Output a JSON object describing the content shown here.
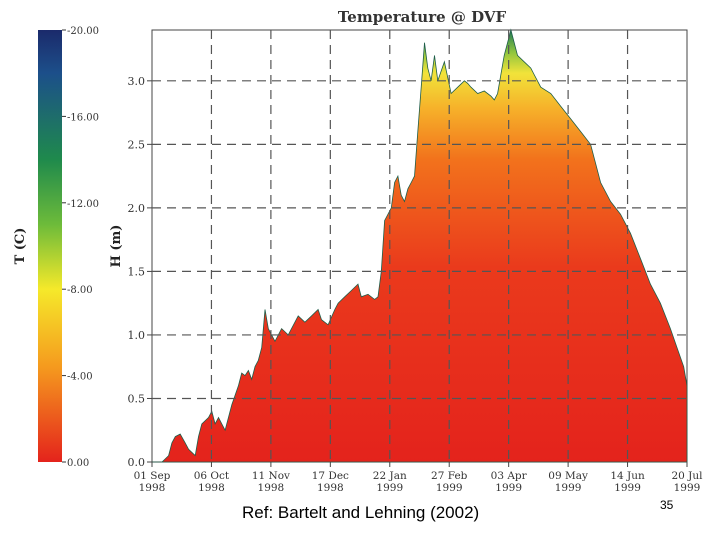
{
  "chart_data": {
    "type": "heatmap",
    "title": "Temperature @ DVF",
    "ylabel": "H (m)",
    "ylim": [
      0,
      3.4
    ],
    "yticks": [
      "0.0",
      "0.5",
      "1.0",
      "1.5",
      "2.0",
      "2.5",
      "3.0"
    ],
    "yticks_values": [
      0,
      0.5,
      1.0,
      1.5,
      2.0,
      2.5,
      3.0
    ],
    "xticks": [
      {
        "day": "01 Sep",
        "year": "1998"
      },
      {
        "day": "06 Oct",
        "year": "1998"
      },
      {
        "day": "11 Nov",
        "year": "1998"
      },
      {
        "day": "17 Dec",
        "year": "1998"
      },
      {
        "day": "22 Jan",
        "year": "1999"
      },
      {
        "day": "27 Feb",
        "year": "1999"
      },
      {
        "day": "03 Apr",
        "year": "1999"
      },
      {
        "day": "09 May",
        "year": "1999"
      },
      {
        "day": "14 Jun",
        "year": "1999"
      },
      {
        "day": "20 Jul",
        "year": "1999"
      }
    ],
    "xlim_days": [
      0,
      322
    ],
    "colorbar": {
      "label": "T (C)",
      "ticks": [
        "-20.00",
        "-16.00",
        "-12.00",
        "-8.00",
        "-4.00",
        "0.00"
      ],
      "tick_values": [
        -20,
        -16,
        -12,
        -8,
        -4,
        0
      ],
      "range": [
        -20,
        0
      ]
    },
    "snow_height_series": {
      "day": [
        0,
        6,
        10,
        12,
        14,
        17,
        20,
        22,
        26,
        28,
        30,
        34,
        36,
        38,
        40,
        42,
        44,
        48,
        52,
        54,
        56,
        58,
        60,
        62,
        64,
        66,
        68,
        70,
        72,
        74,
        78,
        82,
        86,
        88,
        92,
        96,
        100,
        102,
        106,
        110,
        112,
        116,
        120,
        124,
        126,
        130,
        134,
        136,
        138,
        140,
        144,
        146,
        148,
        150,
        152,
        154,
        156,
        158,
        160,
        162,
        164,
        166,
        168,
        170,
        172,
        176,
        180,
        184,
        188,
        190,
        192,
        196,
        200,
        204,
        206,
        208,
        212,
        216,
        220,
        224,
        228,
        230,
        234,
        240,
        246,
        252,
        258,
        264,
        270,
        276,
        282,
        288,
        294,
        300,
        306,
        312,
        316,
        320,
        322
      ],
      "height": [
        0,
        0,
        0.05,
        0.15,
        0.2,
        0.22,
        0.15,
        0.1,
        0.05,
        0.2,
        0.3,
        0.35,
        0.4,
        0.3,
        0.35,
        0.3,
        0.25,
        0.45,
        0.6,
        0.7,
        0.68,
        0.72,
        0.65,
        0.75,
        0.8,
        0.9,
        1.2,
        1.05,
        1.0,
        0.95,
        1.05,
        1.0,
        1.1,
        1.15,
        1.1,
        1.15,
        1.2,
        1.12,
        1.08,
        1.2,
        1.25,
        1.3,
        1.35,
        1.4,
        1.3,
        1.32,
        1.28,
        1.3,
        1.5,
        1.9,
        2.0,
        2.2,
        2.25,
        2.1,
        2.05,
        2.15,
        2.2,
        2.25,
        2.6,
        2.95,
        3.3,
        3.1,
        3.0,
        3.2,
        3.0,
        3.15,
        2.9,
        2.95,
        3.0,
        2.98,
        2.95,
        2.9,
        2.92,
        2.88,
        2.85,
        2.9,
        3.2,
        3.4,
        3.2,
        3.15,
        3.1,
        3.05,
        2.95,
        2.9,
        2.8,
        2.7,
        2.6,
        2.5,
        2.2,
        2.05,
        1.95,
        1.8,
        1.6,
        1.4,
        1.25,
        1.05,
        0.9,
        0.75,
        0.6
      ]
    }
  },
  "footer": {
    "reference": "Ref: Bartelt and Lehning (2002)",
    "page_number": "35"
  }
}
